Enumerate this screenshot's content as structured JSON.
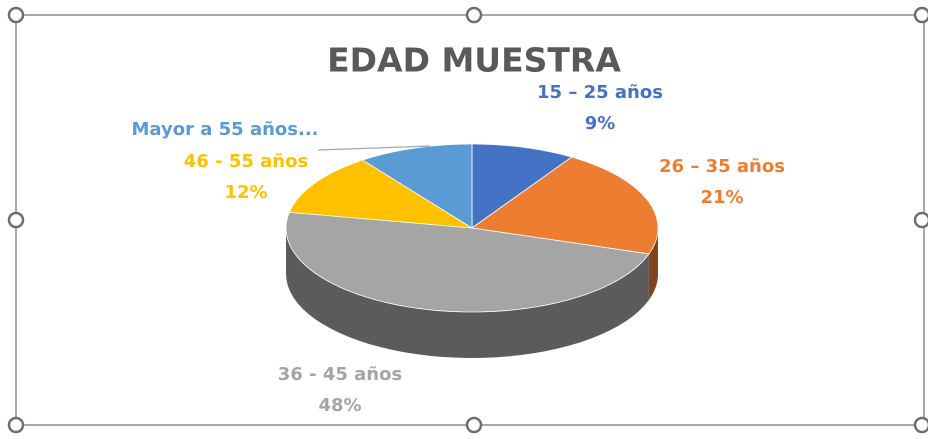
{
  "chart_data": {
    "type": "pie",
    "title": "EDAD MUESTRA",
    "categories": [
      "15 – 25  años",
      "26 – 35 años",
      "36 - 45 años",
      "46 - 55 años",
      "Mayor a 55 años..."
    ],
    "values": [
      9,
      21,
      48,
      12,
      10
    ],
    "value_labels": [
      "9%",
      "21%",
      "48%",
      "12%",
      null
    ],
    "colors": [
      "#4472c4",
      "#ed7d31",
      "#a5a5a5",
      "#ffc000",
      "#5b9bd5"
    ]
  }
}
